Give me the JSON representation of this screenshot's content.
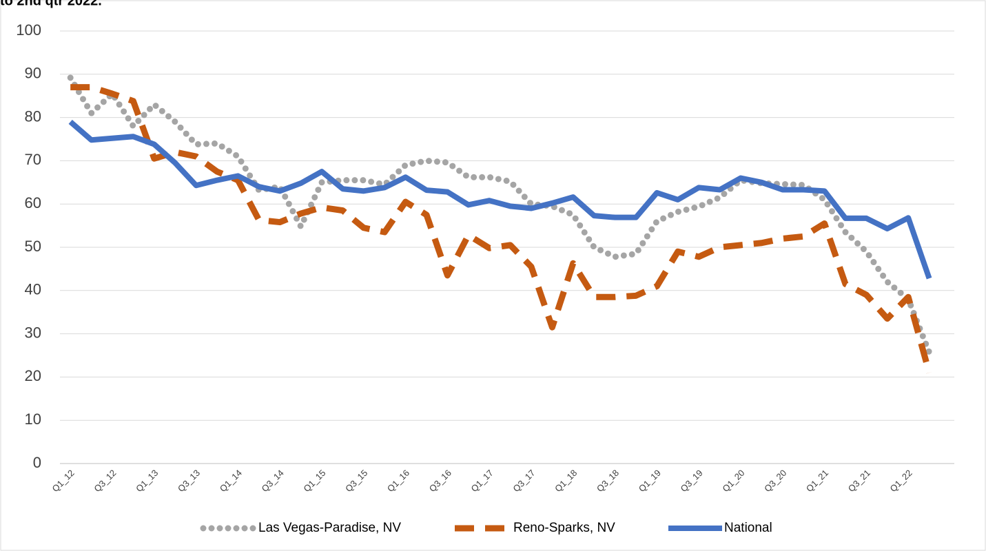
{
  "chart_data": {
    "type": "line",
    "title": "to 2nd qtr 2022.",
    "categories": [
      "Q1_12",
      null,
      "Q3_12",
      null,
      "Q1_13",
      null,
      "Q3_13",
      null,
      "Q1_14",
      null,
      "Q3_14",
      null,
      "Q1_15",
      null,
      "Q3_15",
      null,
      "Q1_16",
      null,
      "Q3_16",
      null,
      "Q1_17",
      null,
      "Q3_17",
      null,
      "Q1_18",
      null,
      "Q3_18",
      null,
      "Q1_19",
      null,
      "Q3_19",
      null,
      "Q1_20",
      null,
      "Q3_20",
      null,
      "Q1_21",
      null,
      "Q3_21",
      null,
      "Q1_22",
      null
    ],
    "series": [
      {
        "name": "Las Vegas-Paradise, NV",
        "color": "#a5a5a5",
        "style": "dotted",
        "values": [
          89.2,
          81,
          85.5,
          78,
          83,
          79,
          73.8,
          74,
          71,
          63.2,
          64,
          54.8,
          65,
          65.5,
          65.5,
          64.5,
          69,
          70,
          69.6,
          66.2,
          66.2,
          65.2,
          60,
          59.5,
          57.5,
          50,
          47.8,
          48.5,
          56,
          58.2,
          59.4,
          61.5,
          65.5,
          64.8,
          64.6,
          64.4,
          61,
          53.5,
          49,
          42,
          38,
          25.7
        ]
      },
      {
        "name": "Reno-Sparks, NV",
        "color": "#c55a11",
        "style": "dashed",
        "values": [
          87,
          87,
          85.5,
          83.8,
          70.5,
          72,
          71,
          67.5,
          65.5,
          56.3,
          55.8,
          57.8,
          59.2,
          58.5,
          54.5,
          53.5,
          60.5,
          57.5,
          43.5,
          52.8,
          49.8,
          50.5,
          45.5,
          31.5,
          46.3,
          38.5,
          38.5,
          38.8,
          41,
          49,
          47.8,
          50,
          50.5,
          51,
          52,
          52.5,
          55.5,
          41.5,
          39,
          33.5,
          38.5,
          21
        ]
      },
      {
        "name": "National",
        "color": "#4472c4",
        "style": "solid",
        "values": [
          79,
          74.8,
          75.2,
          75.6,
          73.8,
          69.5,
          64.3,
          65.5,
          66.5,
          64,
          63,
          64.8,
          67.5,
          63.5,
          63,
          63.8,
          66.2,
          63.2,
          62.8,
          59.8,
          60.8,
          59.5,
          59,
          60.2,
          61.6,
          57.3,
          56.9,
          56.9,
          62.6,
          61,
          63.8,
          63.3,
          66,
          65,
          63.3,
          63.3,
          63,
          56.7,
          56.7,
          54.3,
          56.8,
          42.8
        ]
      }
    ],
    "ylim": [
      0,
      100
    ],
    "yticks": [
      0,
      10,
      20,
      30,
      40,
      50,
      60,
      70,
      80,
      90,
      100
    ],
    "grid": true,
    "legend": "bottom"
  }
}
